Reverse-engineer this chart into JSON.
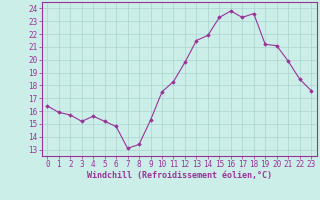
{
  "x": [
    0,
    1,
    2,
    3,
    4,
    5,
    6,
    7,
    8,
    9,
    10,
    11,
    12,
    13,
    14,
    15,
    16,
    17,
    18,
    19,
    20,
    21,
    22,
    23
  ],
  "y": [
    16.4,
    15.9,
    15.7,
    15.2,
    15.6,
    15.2,
    14.8,
    13.1,
    13.4,
    15.3,
    17.5,
    18.3,
    19.8,
    21.5,
    21.9,
    23.3,
    23.8,
    23.3,
    23.6,
    21.2,
    21.1,
    19.9,
    18.5,
    17.6
  ],
  "line_color": "#993399",
  "marker": "D",
  "marker_size": 1.8,
  "linewidth": 0.8,
  "xlabel": "Windchill (Refroidissement éolien,°C)",
  "xlabel_fontsize": 6.0,
  "ylabel_ticks": [
    13,
    14,
    15,
    16,
    17,
    18,
    19,
    20,
    21,
    22,
    23,
    24
  ],
  "ylim": [
    12.5,
    24.5
  ],
  "xlim": [
    -0.5,
    23.5
  ],
  "bg_color": "#cceee8",
  "grid_color": "#aad4ce",
  "tick_label_fontsize": 5.5,
  "spine_color": "#993399"
}
